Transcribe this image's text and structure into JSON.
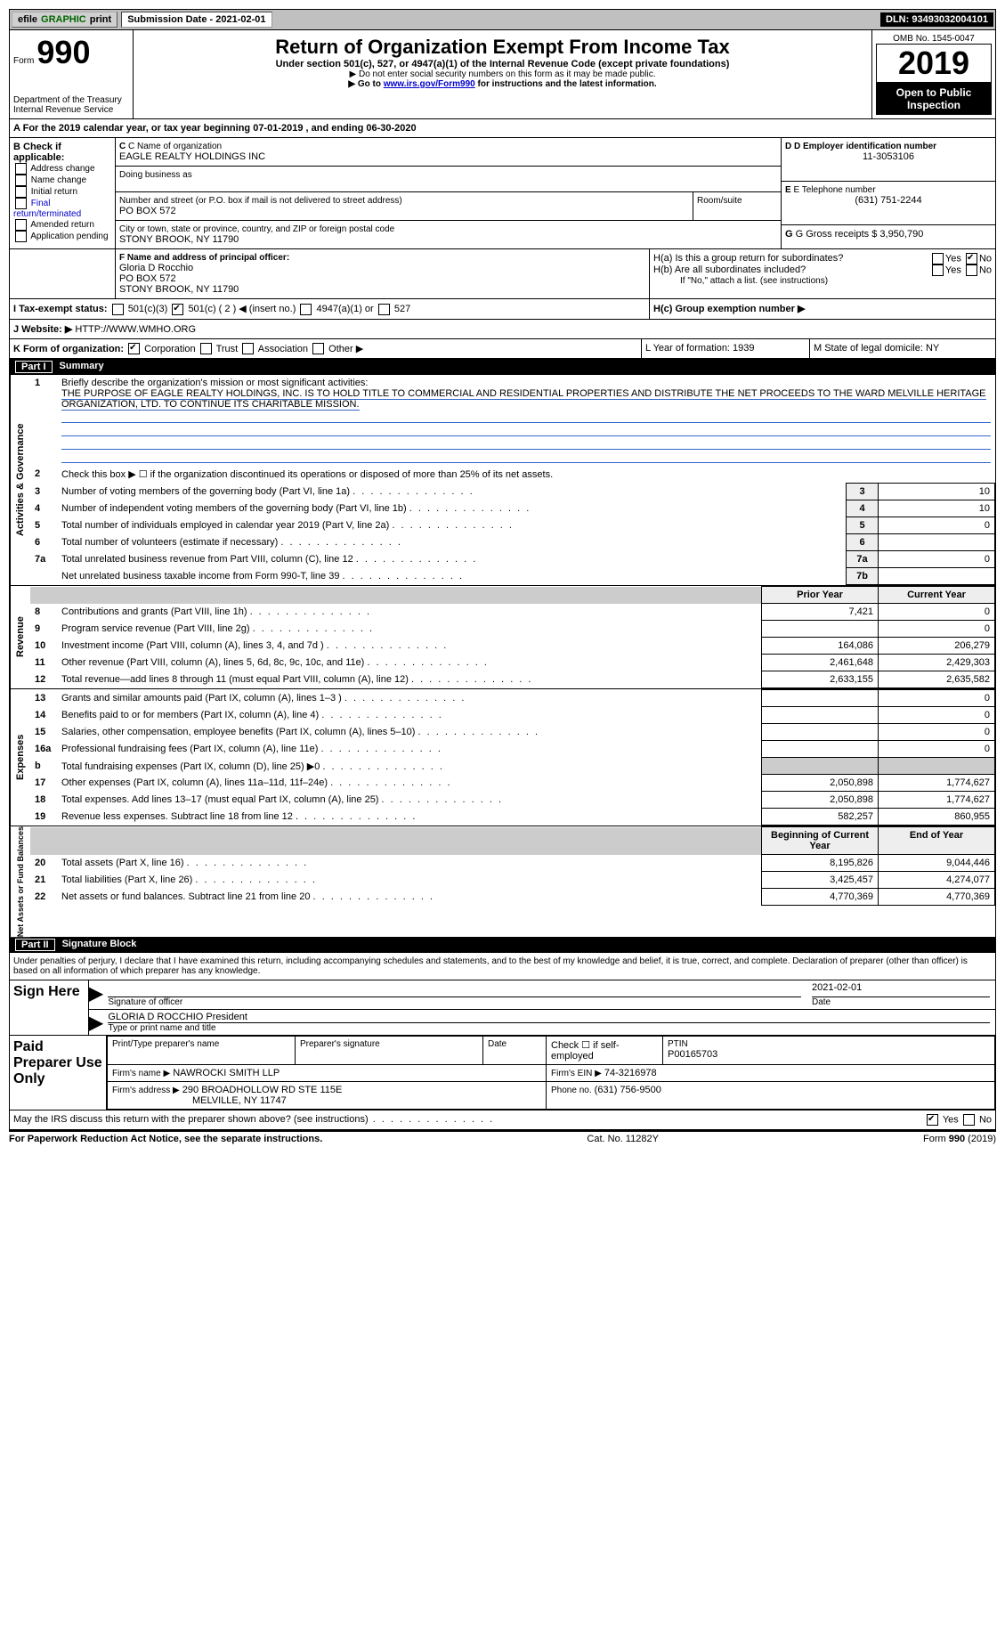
{
  "topbar": {
    "efile_label_1": "efile",
    "efile_label_2": "GRAPHIC",
    "efile_label_3": "print",
    "submission_label": "Submission Date - 2021-02-01",
    "dln": "DLN: 93493032004101"
  },
  "header": {
    "form_prefix": "Form",
    "form_number": "990",
    "dept": "Department of the Treasury",
    "irs": "Internal Revenue Service",
    "title": "Return of Organization Exempt From Income Tax",
    "subtitle": "Under section 501(c), 527, or 4947(a)(1) of the Internal Revenue Code (except private foundations)",
    "note1": "▶ Do not enter social security numbers on this form as it may be made public.",
    "note2_pre": "▶ Go to ",
    "note2_link": "www.irs.gov/Form990",
    "note2_post": " for instructions and the latest information.",
    "omb": "OMB No. 1545-0047",
    "year": "2019",
    "open_public": "Open to Public Inspection"
  },
  "sectionA": {
    "tax_year": "For the 2019 calendar year, or tax year beginning 07-01-2019   , and ending 06-30-2020",
    "b_label": "B Check if applicable:",
    "b_opts": [
      "Address change",
      "Name change",
      "Initial return",
      "Final return/terminated",
      "Amended return",
      "Application pending"
    ],
    "c_label": "C Name of organization",
    "org_name": "EAGLE REALTY HOLDINGS INC",
    "dba_label": "Doing business as",
    "addr_label": "Number and street (or P.O. box if mail is not delivered to street address)",
    "addr": "PO BOX 572",
    "room_label": "Room/suite",
    "city_label": "City or town, state or province, country, and ZIP or foreign postal code",
    "city": "STONY BROOK, NY  11790",
    "d_label": "D Employer identification number",
    "ein": "11-3053106",
    "e_label": "E Telephone number",
    "phone": "(631) 751-2244",
    "g_label": "G Gross receipts $",
    "g_val": "3,950,790",
    "f_label": "F  Name and address of principal officer:",
    "f_name": "Gloria D Rocchio",
    "f_addr1": "PO BOX 572",
    "f_addr2": "STONY BROOK, NY  11790",
    "ha_label": "H(a)  Is this a group return for subordinates?",
    "hb_label": "H(b)  Are all subordinates included?",
    "hb_note": "If \"No,\" attach a list. (see instructions)",
    "hc_label": "H(c)  Group exemption number ▶",
    "yes": "Yes",
    "no": "No",
    "i_label": "I  Tax-exempt status:",
    "i_501c3": "501(c)(3)",
    "i_501c": "501(c) ( 2 ) ◀ (insert no.)",
    "i_4947": "4947(a)(1) or",
    "i_527": "527",
    "j_label": "J Website: ▶",
    "j_val": "HTTP://WWW.WMHO.ORG",
    "k_label": "K Form of organization:",
    "k_opts": [
      "Corporation",
      "Trust",
      "Association",
      "Other ▶"
    ],
    "l_label": "L Year of formation: 1939",
    "m_label": "M State of legal domicile: NY"
  },
  "part1": {
    "header": "Summary",
    "part_label": "Part I",
    "q1_label": "Briefly describe the organization's mission or most significant activities:",
    "q1_text": "THE PURPOSE OF EAGLE REALTY HOLDINGS, INC. IS TO HOLD TITLE TO COMMERCIAL AND RESIDENTIAL PROPERTIES AND DISTRIBUTE THE NET PROCEEDS TO THE WARD MELVILLE HERITAGE ORGANIZATION, LTD. TO CONTINUE ITS CHARITABLE MISSION.",
    "q2_label": "Check this box ▶ ☐  if the organization discontinued its operations or disposed of more than 25% of its net assets.",
    "gov_rows": [
      {
        "n": "3",
        "label": "Number of voting members of the governing body (Part VI, line 1a)",
        "box": "3",
        "val": "10"
      },
      {
        "n": "4",
        "label": "Number of independent voting members of the governing body (Part VI, line 1b)",
        "box": "4",
        "val": "10"
      },
      {
        "n": "5",
        "label": "Total number of individuals employed in calendar year 2019 (Part V, line 2a)",
        "box": "5",
        "val": "0"
      },
      {
        "n": "6",
        "label": "Total number of volunteers (estimate if necessary)",
        "box": "6",
        "val": ""
      },
      {
        "n": "7a",
        "label": "Total unrelated business revenue from Part VIII, column (C), line 12",
        "box": "7a",
        "val": "0"
      },
      {
        "n": "",
        "label": "Net unrelated business taxable income from Form 990-T, line 39",
        "box": "7b",
        "val": ""
      }
    ],
    "col_prior": "Prior Year",
    "col_current": "Current Year",
    "rev_rows": [
      {
        "n": "8",
        "label": "Contributions and grants (Part VIII, line 1h)",
        "prior": "7,421",
        "curr": "0"
      },
      {
        "n": "9",
        "label": "Program service revenue (Part VIII, line 2g)",
        "prior": "",
        "curr": "0"
      },
      {
        "n": "10",
        "label": "Investment income (Part VIII, column (A), lines 3, 4, and 7d )",
        "prior": "164,086",
        "curr": "206,279"
      },
      {
        "n": "11",
        "label": "Other revenue (Part VIII, column (A), lines 5, 6d, 8c, 9c, 10c, and 11e)",
        "prior": "2,461,648",
        "curr": "2,429,303"
      },
      {
        "n": "12",
        "label": "Total revenue—add lines 8 through 11 (must equal Part VIII, column (A), line 12)",
        "prior": "2,633,155",
        "curr": "2,635,582"
      }
    ],
    "exp_rows": [
      {
        "n": "13",
        "label": "Grants and similar amounts paid (Part IX, column (A), lines 1–3 )",
        "prior": "",
        "curr": "0"
      },
      {
        "n": "14",
        "label": "Benefits paid to or for members (Part IX, column (A), line 4)",
        "prior": "",
        "curr": "0"
      },
      {
        "n": "15",
        "label": "Salaries, other compensation, employee benefits (Part IX, column (A), lines 5–10)",
        "prior": "",
        "curr": "0"
      },
      {
        "n": "16a",
        "label": "Professional fundraising fees (Part IX, column (A), line 11e)",
        "prior": "",
        "curr": "0"
      },
      {
        "n": "b",
        "label": "Total fundraising expenses (Part IX, column (D), line 25) ▶0",
        "prior": "SHADE",
        "curr": "SHADE"
      },
      {
        "n": "17",
        "label": "Other expenses (Part IX, column (A), lines 11a–11d, 11f–24e)",
        "prior": "2,050,898",
        "curr": "1,774,627"
      },
      {
        "n": "18",
        "label": "Total expenses. Add lines 13–17 (must equal Part IX, column (A), line 25)",
        "prior": "2,050,898",
        "curr": "1,774,627"
      },
      {
        "n": "19",
        "label": "Revenue less expenses. Subtract line 18 from line 12",
        "prior": "582,257",
        "curr": "860,955"
      }
    ],
    "col_begin": "Beginning of Current Year",
    "col_end": "End of Year",
    "net_rows": [
      {
        "n": "20",
        "label": "Total assets (Part X, line 16)",
        "prior": "8,195,826",
        "curr": "9,044,446"
      },
      {
        "n": "21",
        "label": "Total liabilities (Part X, line 26)",
        "prior": "3,425,457",
        "curr": "4,274,077"
      },
      {
        "n": "22",
        "label": "Net assets or fund balances. Subtract line 21 from line 20",
        "prior": "4,770,369",
        "curr": "4,770,369"
      }
    ],
    "vert_gov": "Activities & Governance",
    "vert_rev": "Revenue",
    "vert_exp": "Expenses",
    "vert_net": "Net Assets or Fund Balances"
  },
  "part2": {
    "part_label": "Part II",
    "header": "Signature Block",
    "declaration": "Under penalties of perjury, I declare that I have examined this return, including accompanying schedules and statements, and to the best of my knowledge and belief, it is true, correct, and complete. Declaration of preparer (other than officer) is based on all information of which preparer has any knowledge.",
    "sign_here": "Sign Here",
    "sig_officer": "Signature of officer",
    "sig_date": "2021-02-01",
    "date_label": "Date",
    "officer_name": "GLORIA D ROCCHIO  President",
    "officer_type": "Type or print name and title",
    "paid_prep": "Paid Preparer Use Only",
    "prep_name_label": "Print/Type preparer's name",
    "prep_sig_label": "Preparer's signature",
    "prep_date_label": "Date",
    "check_self": "Check ☐ if self-employed",
    "ptin_label": "PTIN",
    "ptin": "P00165703",
    "firm_name_label": "Firm's name    ▶",
    "firm_name": "NAWROCKI SMITH LLP",
    "firm_ein_label": "Firm's EIN ▶",
    "firm_ein": "74-3216978",
    "firm_addr_label": "Firm's address ▶",
    "firm_addr1": "290 BROADHOLLOW RD STE 115E",
    "firm_addr2": "MELVILLE, NY  11747",
    "firm_phone_label": "Phone no.",
    "firm_phone": "(631) 756-9500",
    "may_irs": "May the IRS discuss this return with the preparer shown above? (see instructions)"
  },
  "footer": {
    "paperwork": "For Paperwork Reduction Act Notice, see the separate instructions.",
    "cat": "Cat. No. 11282Y",
    "form": "Form 990 (2019)"
  }
}
